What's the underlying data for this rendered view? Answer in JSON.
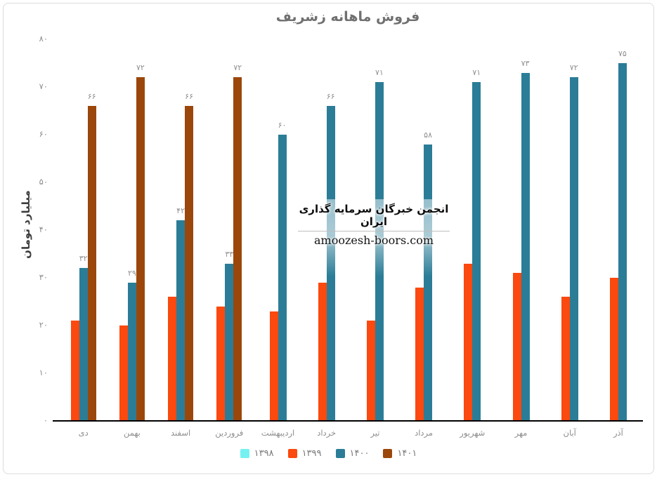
{
  "title": "فروش ماهانه زشریف",
  "y_axis_title": "میلیارد تومان",
  "watermark": {
    "line1": "انجمن خبرگان سرمایه گذاری ایران",
    "line2": "amoozesh-boors.com"
  },
  "colors": {
    "series_1398": "#76F1F1",
    "series_1399": "#FB490F",
    "series_1400": "#2B7D97",
    "series_1401": "#9B470B",
    "axis_line": "#000000",
    "tick_text": "#8c8c8c",
    "title_text": "#707070",
    "card_border": "#dcdcdc",
    "bar_label_text": "#8f8f8f"
  },
  "legend": {
    "position": "bottom",
    "items": [
      {
        "key": "y1398",
        "label": "۱۳۹۸",
        "color": "#76F1F1"
      },
      {
        "key": "y1399",
        "label": "۱۳۹۹",
        "color": "#FB490F"
      },
      {
        "key": "y1400",
        "label": "۱۴۰۰",
        "color": "#2B7D97"
      },
      {
        "key": "y1401",
        "label": "۱۴۰۱",
        "color": "#9B470B"
      }
    ]
  },
  "chart_data": {
    "type": "bar",
    "title": "فروش ماهانه زشریف",
    "xlabel": "",
    "ylabel": "میلیارد تومان",
    "ylim": [
      0,
      80
    ],
    "grid": false,
    "legend_position": "bottom",
    "categories": [
      "دی",
      "بهمن",
      "اسفند",
      "فروردین",
      "اردیبهشت",
      "خرداد",
      "تیر",
      "مرداد",
      "شهریور",
      "مهر",
      "آبان",
      "آذر"
    ],
    "y_ticks": [
      {
        "value": 0,
        "label": "۰"
      },
      {
        "value": 10,
        "label": "۱۰"
      },
      {
        "value": 20,
        "label": "۲۰"
      },
      {
        "value": 30,
        "label": "۳۰"
      },
      {
        "value": 40,
        "label": "۴۰"
      },
      {
        "value": 50,
        "label": "۵۰"
      },
      {
        "value": 60,
        "label": "۶۰"
      },
      {
        "value": 70,
        "label": "۷۰"
      },
      {
        "value": 80,
        "label": "۸۰"
      }
    ],
    "series": [
      {
        "key": "y1398",
        "name": "۱۳۹۸",
        "color": "#76F1F1",
        "values": [
          null,
          null,
          null,
          null,
          null,
          null,
          null,
          null,
          null,
          null,
          null,
          null
        ],
        "data_labels": null
      },
      {
        "key": "y1399",
        "name": "۱۳۹۹",
        "color": "#FB490F",
        "values": [
          21,
          20,
          26,
          24,
          23,
          29,
          21,
          28,
          33,
          31,
          26,
          30
        ],
        "data_labels": null
      },
      {
        "key": "y1400",
        "name": "۱۴۰۰",
        "color": "#2B7D97",
        "values": [
          32,
          29,
          42,
          33,
          60,
          66,
          71,
          58,
          71,
          73,
          72,
          75
        ],
        "data_labels": [
          "۳۲",
          "۲۹",
          "۴۲",
          "۳۳",
          "۶۰",
          "۶۶",
          "۷۱",
          "۵۸",
          "۷۱",
          "۷۳",
          "۷۲",
          "۷۵"
        ]
      },
      {
        "key": "y1401",
        "name": "۱۴۰۱",
        "color": "#9B470B",
        "values": [
          66,
          72,
          66,
          72,
          null,
          null,
          null,
          null,
          null,
          null,
          null,
          null
        ],
        "data_labels": [
          "۶۶",
          "۷۲",
          "۶۶",
          "۷۲",
          null,
          null,
          null,
          null,
          null,
          null,
          null,
          null
        ]
      }
    ]
  }
}
